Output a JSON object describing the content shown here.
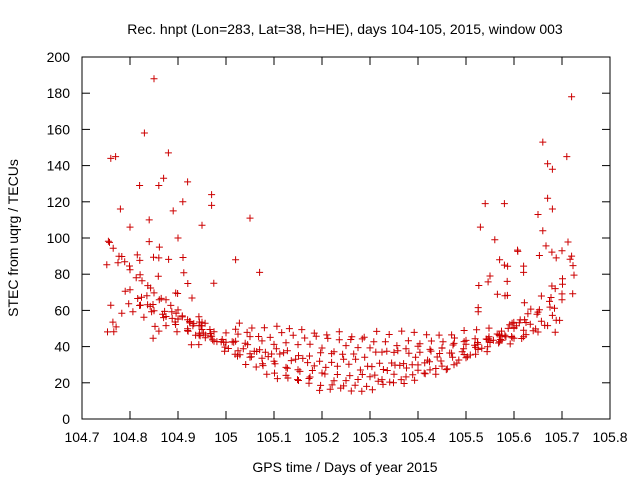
{
  "chart_data": {
    "type": "scatter",
    "title": "Rec. hnpt (Lon=283, Lat=38, h=HE), days 104-105, 2015, window 003",
    "xlabel": "GPS time / Days of year 2015",
    "ylabel": "STEC from uqrg / TECUs",
    "xlim": [
      104.7,
      105.8
    ],
    "ylim": [
      0,
      200
    ],
    "x_ticks": [
      "104.7",
      "104.8",
      "104.9",
      "105",
      "105.1",
      "105.2",
      "105.3",
      "105.4",
      "105.5",
      "105.6",
      "105.7",
      "105.8"
    ],
    "y_ticks": [
      "0",
      "20",
      "40",
      "60",
      "80",
      "100",
      "120",
      "140",
      "160",
      "180",
      "200"
    ],
    "grid": false,
    "marker": "+",
    "marker_color": "#cc0000",
    "outliers": [
      [
        104.85,
        188
      ],
      [
        104.83,
        158
      ],
      [
        104.88,
        147
      ],
      [
        104.77,
        145
      ],
      [
        104.76,
        144
      ],
      [
        104.87,
        133
      ],
      [
        104.92,
        131
      ],
      [
        104.86,
        129
      ],
      [
        104.82,
        129
      ],
      [
        104.97,
        124
      ],
      [
        104.95,
        107
      ],
      [
        104.97,
        118
      ],
      [
        104.89,
        115
      ],
      [
        104.91,
        120
      ],
      [
        104.78,
        116
      ],
      [
        104.8,
        106
      ],
      [
        104.84,
        110
      ],
      [
        104.9,
        100
      ],
      [
        104.84,
        98
      ],
      [
        104.86,
        89
      ],
      [
        105.07,
        81
      ],
      [
        105.05,
        111
      ],
      [
        105.02,
        88
      ],
      [
        105.58,
        119
      ],
      [
        105.54,
        119
      ],
      [
        105.56,
        99
      ],
      [
        105.53,
        106
      ],
      [
        105.57,
        88
      ],
      [
        105.66,
        153
      ],
      [
        105.67,
        141
      ],
      [
        105.68,
        138
      ],
      [
        105.71,
        145
      ],
      [
        105.68,
        116
      ],
      [
        105.67,
        122
      ],
      [
        105.66,
        104
      ],
      [
        105.72,
        178
      ],
      [
        105.72,
        90
      ],
      [
        105.7,
        93
      ],
      [
        105.65,
        113
      ],
      [
        105.62,
        81
      ],
      [
        105.55,
        79
      ],
      [
        105.58,
        85
      ]
    ]
  }
}
